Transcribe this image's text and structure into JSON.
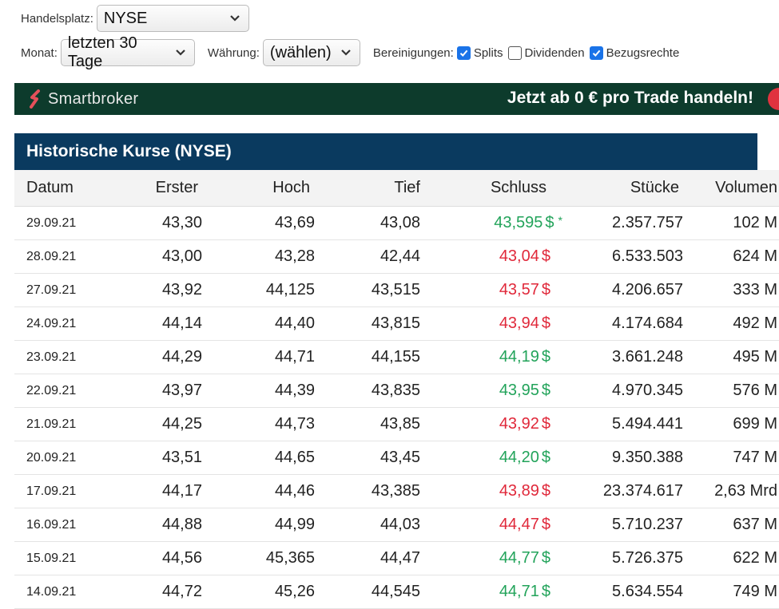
{
  "filters": {
    "handelsplatz_label": "Handelsplatz:",
    "handelsplatz_value": "NYSE",
    "monat_label": "Monat:",
    "monat_value": "letzten 30 Tage",
    "waehrung_label": "Währung:",
    "waehrung_value": "(wählen)",
    "bereinigungen_label": "Bereinigungen:",
    "splits_label": "Splits",
    "splits_checked": true,
    "dividenden_label": "Dividenden",
    "dividenden_checked": false,
    "bezugsrechte_label": "Bezugsrechte",
    "bezugsrechte_checked": true
  },
  "banner": {
    "brand": "Smartbroker",
    "promo": "Jetzt ab 0 € pro Trade handeln!",
    "brand_color": "#0d3b2c"
  },
  "table": {
    "title": "Historische Kurse (NYSE)",
    "header_color": "#0a3a5f",
    "headers": [
      "Datum",
      "Erster",
      "Hoch",
      "Tief",
      "Schluss",
      "Stücke",
      "Volumen"
    ],
    "currency": "$",
    "star": "*",
    "rows": [
      {
        "datum": "29.09.21",
        "erster": "43,30",
        "hoch": "43,69",
        "tief": "43,08",
        "schluss": "43,595",
        "dir": "up",
        "star": true,
        "stuecke": "2.357.757",
        "volumen": "102 M"
      },
      {
        "datum": "28.09.21",
        "erster": "43,00",
        "hoch": "43,28",
        "tief": "42,44",
        "schluss": "43,04",
        "dir": "down",
        "star": false,
        "stuecke": "6.533.503",
        "volumen": "624 M"
      },
      {
        "datum": "27.09.21",
        "erster": "43,92",
        "hoch": "44,125",
        "tief": "43,515",
        "schluss": "43,57",
        "dir": "down",
        "star": false,
        "stuecke": "4.206.657",
        "volumen": "333 M"
      },
      {
        "datum": "24.09.21",
        "erster": "44,14",
        "hoch": "44,40",
        "tief": "43,815",
        "schluss": "43,94",
        "dir": "down",
        "star": false,
        "stuecke": "4.174.684",
        "volumen": "492 M"
      },
      {
        "datum": "23.09.21",
        "erster": "44,29",
        "hoch": "44,71",
        "tief": "44,155",
        "schluss": "44,19",
        "dir": "up",
        "star": false,
        "stuecke": "3.661.248",
        "volumen": "495 M"
      },
      {
        "datum": "22.09.21",
        "erster": "43,97",
        "hoch": "44,39",
        "tief": "43,835",
        "schluss": "43,95",
        "dir": "up",
        "star": false,
        "stuecke": "4.970.345",
        "volumen": "576 M"
      },
      {
        "datum": "21.09.21",
        "erster": "44,25",
        "hoch": "44,73",
        "tief": "43,85",
        "schluss": "43,92",
        "dir": "down",
        "star": false,
        "stuecke": "5.494.441",
        "volumen": "699 M"
      },
      {
        "datum": "20.09.21",
        "erster": "43,51",
        "hoch": "44,65",
        "tief": "43,45",
        "schluss": "44,20",
        "dir": "up",
        "star": false,
        "stuecke": "9.350.388",
        "volumen": "747 M"
      },
      {
        "datum": "17.09.21",
        "erster": "44,17",
        "hoch": "44,46",
        "tief": "43,385",
        "schluss": "43,89",
        "dir": "down",
        "star": false,
        "stuecke": "23.374.617",
        "volumen": "2,63 Mrd"
      },
      {
        "datum": "16.09.21",
        "erster": "44,88",
        "hoch": "44,99",
        "tief": "44,03",
        "schluss": "44,47",
        "dir": "down",
        "star": false,
        "stuecke": "5.710.237",
        "volumen": "637 M"
      },
      {
        "datum": "15.09.21",
        "erster": "44,56",
        "hoch": "45,365",
        "tief": "44,47",
        "schluss": "44,77",
        "dir": "up",
        "star": false,
        "stuecke": "5.726.375",
        "volumen": "622 M"
      },
      {
        "datum": "14.09.21",
        "erster": "44,72",
        "hoch": "45,26",
        "tief": "44,545",
        "schluss": "44,71",
        "dir": "up",
        "star": false,
        "stuecke": "5.634.554",
        "volumen": "749 M"
      }
    ]
  }
}
